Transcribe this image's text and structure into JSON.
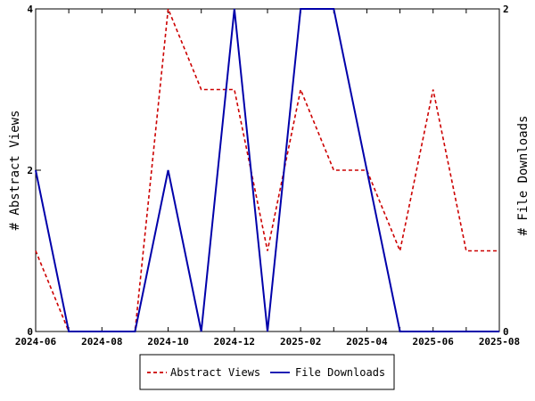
{
  "chart_data": {
    "type": "line",
    "x": [
      "2024-06",
      "2024-07",
      "2024-08",
      "2024-09",
      "2024-10",
      "2024-11",
      "2024-12",
      "2025-01",
      "2025-02",
      "2025-03",
      "2025-04",
      "2025-05",
      "2025-06",
      "2025-07",
      "2025-08"
    ],
    "x_tick_labels": [
      "2024-06",
      "2024-08",
      "2024-10",
      "2024-12",
      "2025-02",
      "2025-04",
      "2025-06",
      "2025-08"
    ],
    "series": [
      {
        "name": "Abstract Views",
        "axis": "left",
        "color": "#cc0000",
        "dash": "dashed",
        "values": [
          1,
          0,
          0,
          0,
          4,
          3,
          3,
          1,
          3,
          2,
          2,
          1,
          3,
          1,
          1
        ]
      },
      {
        "name": "File Downloads",
        "axis": "right",
        "color": "#0000aa",
        "dash": "solid",
        "values": [
          1,
          0,
          0,
          0,
          1,
          0,
          2,
          0,
          2,
          2,
          1,
          0,
          0,
          0,
          0
        ]
      }
    ],
    "ylabel_left": "# Abstract Views",
    "ylabel_right": "# File Downloads",
    "ylim_left": [
      0,
      4
    ],
    "ylim_right": [
      0,
      2
    ],
    "y_ticks_left": [
      "0",
      "2",
      "4"
    ],
    "y_ticks_right": [
      "0",
      "2"
    ],
    "grid": false,
    "legend_position": "bottom-center"
  }
}
